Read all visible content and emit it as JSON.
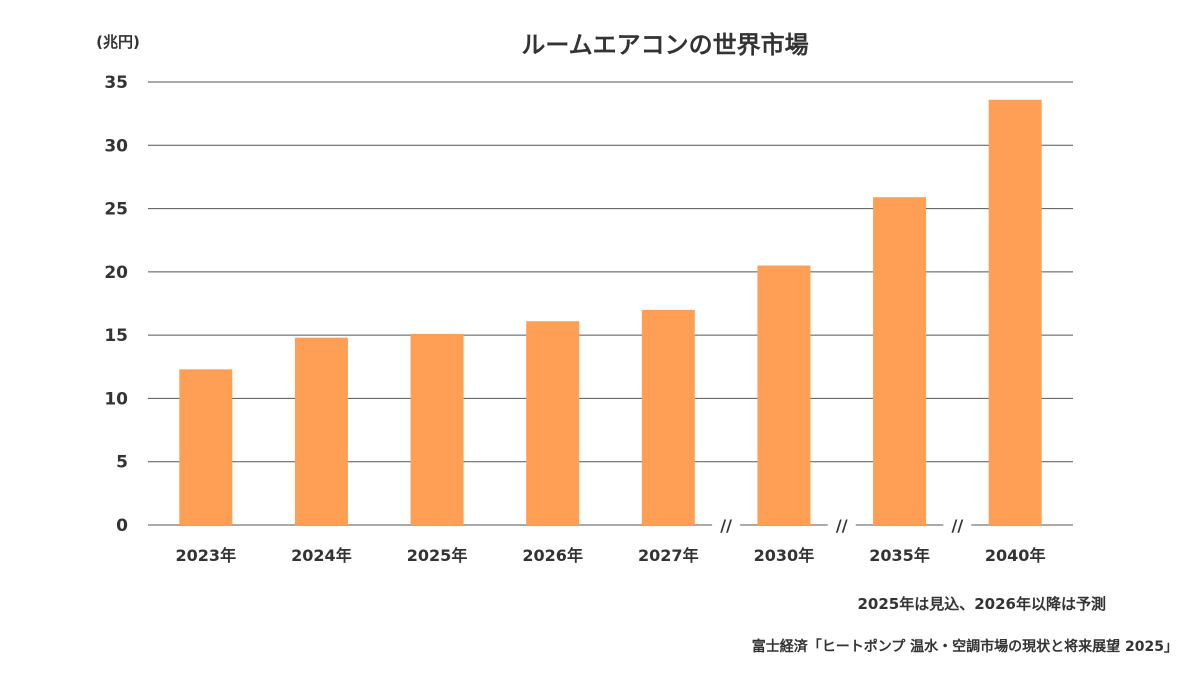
{
  "chart_data": {
    "type": "bar",
    "title": "ルームエアコンの世界市場",
    "ylabel": "(兆円)",
    "xlabel": "",
    "categories": [
      "2023年",
      "2024年",
      "2025年",
      "2026年",
      "2027年",
      "2030年",
      "2035年",
      "2040年"
    ],
    "values": [
      12.3,
      14.8,
      15.1,
      16.1,
      17.0,
      20.5,
      25.9,
      33.6
    ],
    "ylim": [
      0,
      35
    ],
    "yticks": [
      0,
      5,
      10,
      15,
      20,
      25,
      30,
      35
    ],
    "grid": true,
    "bar_color": "#FF9F55",
    "axis_breaks": [
      "//",
      "//",
      "//"
    ]
  },
  "notes": {
    "forecast": "2025年は見込、2026年以降は予測",
    "source": "富士経済「ヒートポンプ 温水・空調市場の現状と将来展望 2025」"
  }
}
